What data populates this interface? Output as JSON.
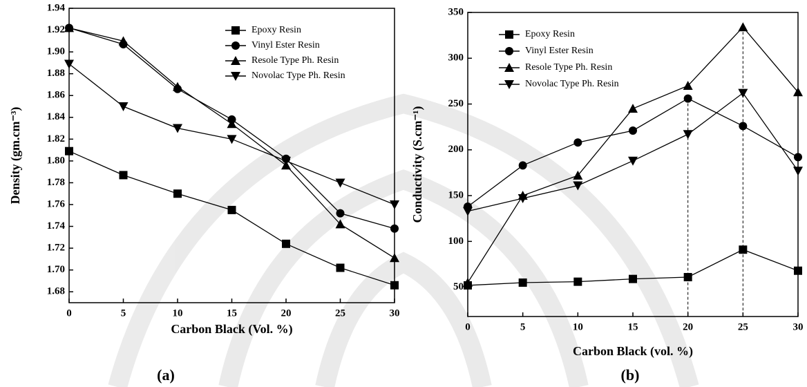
{
  "chart_data": [
    {
      "type": "line",
      "caption": "(a)",
      "xlabel": "Carbon Black (Vol. %)",
      "ylabel": "Density (gm.cm⁻³)",
      "x": [
        0,
        5,
        10,
        15,
        20,
        25,
        30
      ],
      "series": [
        {
          "name": "Epoxy Resin",
          "color": "#000000",
          "marker": "square",
          "values": [
            1.809,
            1.787,
            1.77,
            1.755,
            1.724,
            1.702,
            1.686
          ]
        },
        {
          "name": "Vinyl Ester Resin",
          "color": "#000000",
          "marker": "circle",
          "values": [
            1.922,
            1.907,
            1.866,
            1.838,
            1.802,
            1.752,
            1.738
          ]
        },
        {
          "name": "Resole Type Ph. Resin",
          "color": "#000000",
          "marker": "triangle-up",
          "values": [
            1.922,
            1.91,
            1.868,
            1.834,
            1.796,
            1.742,
            1.711
          ]
        },
        {
          "name": "Novolac Type Ph. Resin",
          "color": "#000000",
          "marker": "triangle-down",
          "values": [
            1.889,
            1.85,
            1.83,
            1.82,
            1.8,
            1.78,
            1.76
          ]
        }
      ],
      "xlim": [
        0,
        30
      ],
      "xticks": [
        0,
        5,
        10,
        15,
        20,
        25,
        30
      ],
      "ylim": [
        1.67,
        1.94
      ],
      "yticks": [
        1.68,
        {
          "value": 1.7,
          "label": "1.70"
        },
        1.72,
        1.74,
        1.76,
        1.78,
        {
          "value": 1.8,
          "label": "1.80"
        },
        1.82,
        1.84,
        1.86,
        1.88,
        {
          "value": 1.9,
          "label": "1.90"
        },
        1.92,
        1.94
      ],
      "legend": "upper right"
    },
    {
      "type": "line",
      "caption": "(b)",
      "xlabel": "Carbon Black (vol. %)",
      "ylabel": "Conductivity (S.cm⁻¹)",
      "x": [
        0,
        5,
        10,
        15,
        20,
        25,
        30
      ],
      "series": [
        {
          "name": "Epoxy Resin",
          "color": "#000000",
          "marker": "square",
          "values": [
            52,
            55,
            56,
            59,
            61,
            91,
            68
          ]
        },
        {
          "name": "Vinyl Ester Resin",
          "color": "#000000",
          "marker": "circle",
          "values": [
            138,
            183,
            208,
            221,
            256,
            226,
            192
          ]
        },
        {
          "name": "Resole Type Ph. Resin",
          "color": "#000000",
          "marker": "triangle-up",
          "values": [
            55,
            150,
            172,
            245,
            270,
            334,
            263
          ]
        },
        {
          "name": "Novolac Type Ph. Resin",
          "color": "#000000",
          "marker": "triangle-down",
          "values": [
            133,
            147,
            161,
            188,
            217,
            262,
            177
          ]
        }
      ],
      "xlim": [
        0,
        30
      ],
      "xticks": [
        0,
        5,
        10,
        15,
        20,
        25,
        30
      ],
      "ylim": [
        18,
        350
      ],
      "yticks": [
        50,
        100,
        150,
        200,
        250,
        300,
        350
      ],
      "legend": "upper left"
    }
  ]
}
